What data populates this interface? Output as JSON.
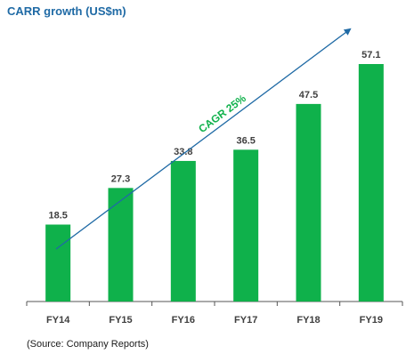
{
  "chart_data": {
    "type": "bar",
    "title": "CARR growth (US$m)",
    "categories": [
      "FY14",
      "FY15",
      "FY16",
      "FY17",
      "FY18",
      "FY19"
    ],
    "values": [
      18.5,
      27.3,
      33.8,
      36.5,
      47.5,
      57.1
    ],
    "value_labels": [
      "18.5",
      "27.3",
      "33.8",
      "36.5",
      "47.5",
      "57.1"
    ],
    "xlabel": "",
    "ylabel": "",
    "ylim": [
      0,
      60
    ],
    "grid": false,
    "annotation": "CAGR 25%",
    "source": "(Source: Company Reports)",
    "colors": {
      "bar": "#0fb14b",
      "title": "#1f6aa5",
      "arrow": "#1f6aa5",
      "annotation": "#0fb14b"
    }
  }
}
